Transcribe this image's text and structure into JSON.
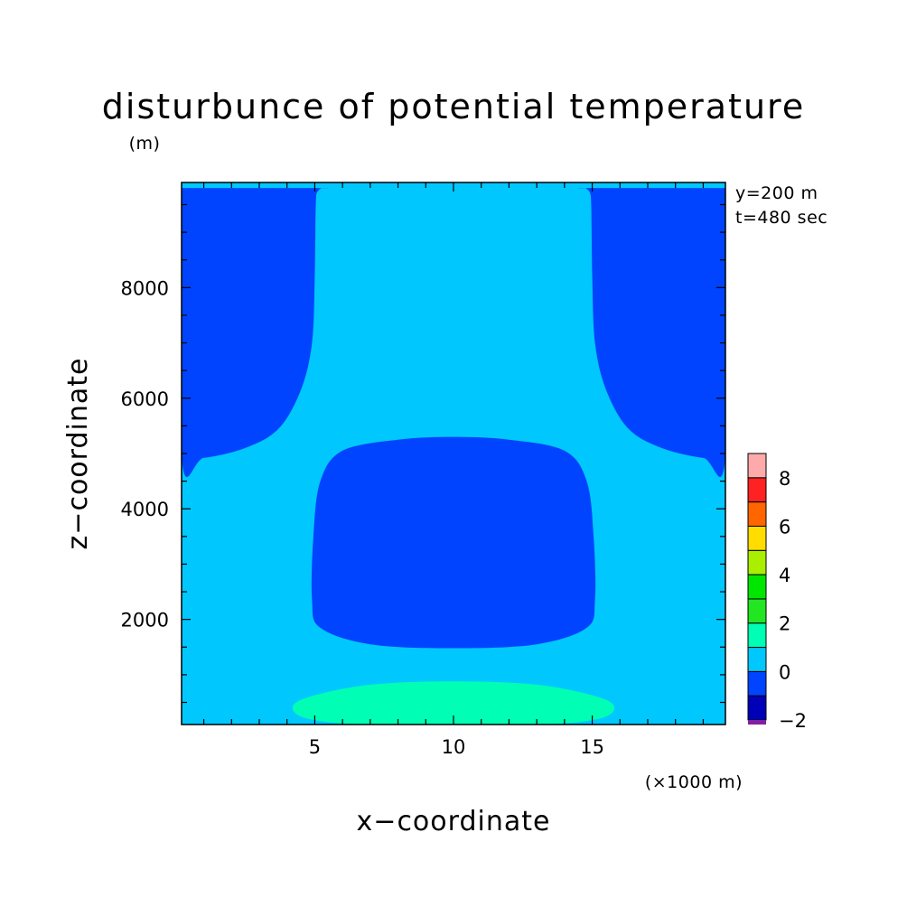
{
  "chart_data": {
    "type": "heatmap",
    "title": "disturbunce of potential temperature",
    "units_label": "(m)",
    "xlabel": "x−coordinate",
    "ylabel": "z−coordinate",
    "x_scale_label": "(×1000 m)",
    "annotations": [
      "y=200 m",
      "t=480 sec"
    ],
    "xlim": [
      0.2,
      19.8
    ],
    "ylim": [
      100,
      9900
    ],
    "x_ticks": [
      {
        "value": 5,
        "label": "5"
      },
      {
        "value": 10,
        "label": "10"
      },
      {
        "value": 15,
        "label": "15"
      }
    ],
    "y_ticks": [
      {
        "value": 2000,
        "label": "2000"
      },
      {
        "value": 4000,
        "label": "4000"
      },
      {
        "value": 6000,
        "label": "6000"
      },
      {
        "value": 8000,
        "label": "8000"
      }
    ],
    "colorbar": {
      "levels": [
        -2,
        -1,
        0,
        1,
        2,
        3,
        4,
        5,
        6,
        7,
        8,
        9
      ],
      "colors": [
        "#0000b8",
        "#0044ff",
        "#00c8ff",
        "#00ffb4",
        "#22e622",
        "#00e600",
        "#aaee00",
        "#ffdd00",
        "#ff6600",
        "#ff2222",
        "#ffaaaa"
      ],
      "tick_labels": [
        {
          "value": -2,
          "label": "−2"
        },
        {
          "value": 0,
          "label": "0"
        },
        {
          "value": 2,
          "label": "2"
        },
        {
          "value": 4,
          "label": "4"
        },
        {
          "value": 6,
          "label": "6"
        },
        {
          "value": 8,
          "label": "8"
        }
      ],
      "below_min_color": "#8020a0"
    },
    "regions": [
      {
        "value_range": [
          0,
          1
        ],
        "color": "#00c8ff",
        "shape": "background",
        "points": [
          [
            0.2,
            100
          ],
          [
            19.8,
            100
          ],
          [
            19.8,
            9900
          ],
          [
            0.2,
            9900
          ]
        ]
      },
      {
        "value_range": [
          -1,
          0
        ],
        "color": "#0044ff",
        "shape": "top-left",
        "points": [
          [
            0.2,
            4950
          ],
          [
            1.0,
            4920
          ],
          [
            2.5,
            5100
          ],
          [
            3.7,
            5450
          ],
          [
            4.5,
            6150
          ],
          [
            4.9,
            7000
          ],
          [
            5.0,
            8200
          ],
          [
            5.05,
            9650
          ],
          [
            5.2,
            9800
          ],
          [
            0.2,
            9800
          ]
        ]
      },
      {
        "value_range": [
          -1,
          0
        ],
        "color": "#0044ff",
        "shape": "top-right",
        "points": [
          [
            19.8,
            4950
          ],
          [
            19.0,
            4920
          ],
          [
            17.5,
            5100
          ],
          [
            16.3,
            5450
          ],
          [
            15.5,
            6150
          ],
          [
            15.1,
            7000
          ],
          [
            15.0,
            8200
          ],
          [
            14.95,
            9650
          ],
          [
            14.8,
            9800
          ],
          [
            19.8,
            9800
          ]
        ]
      },
      {
        "value_range": [
          -1,
          0
        ],
        "color": "#0044ff",
        "shape": "middle-blob",
        "points": [
          [
            8.0,
            5250
          ],
          [
            10.0,
            5300
          ],
          [
            12.0,
            5250
          ],
          [
            14.0,
            5050
          ],
          [
            14.8,
            4500
          ],
          [
            15.05,
            3500
          ],
          [
            15.1,
            2350
          ],
          [
            14.8,
            1850
          ],
          [
            13.0,
            1550
          ],
          [
            10.0,
            1480
          ],
          [
            7.0,
            1550
          ],
          [
            5.2,
            1850
          ],
          [
            4.9,
            2350
          ],
          [
            4.95,
            3500
          ],
          [
            5.2,
            4500
          ],
          [
            6.0,
            5050
          ]
        ]
      },
      {
        "value_range": [
          1,
          2
        ],
        "color": "#00ffb4",
        "shape": "bottom-ellipse",
        "points": [
          [
            4.2,
            400
          ],
          [
            4.8,
            600
          ],
          [
            7.0,
            820
          ],
          [
            10.0,
            880
          ],
          [
            13.0,
            820
          ],
          [
            15.2,
            600
          ],
          [
            15.8,
            400
          ],
          [
            15.2,
            200
          ],
          [
            13.0,
            100
          ],
          [
            7.0,
            100
          ],
          [
            4.8,
            200
          ]
        ]
      }
    ],
    "top_strip": {
      "z_range": [
        9800,
        9900
      ],
      "color": "#00c8ff"
    },
    "grid": false,
    "legend_position": "right"
  }
}
